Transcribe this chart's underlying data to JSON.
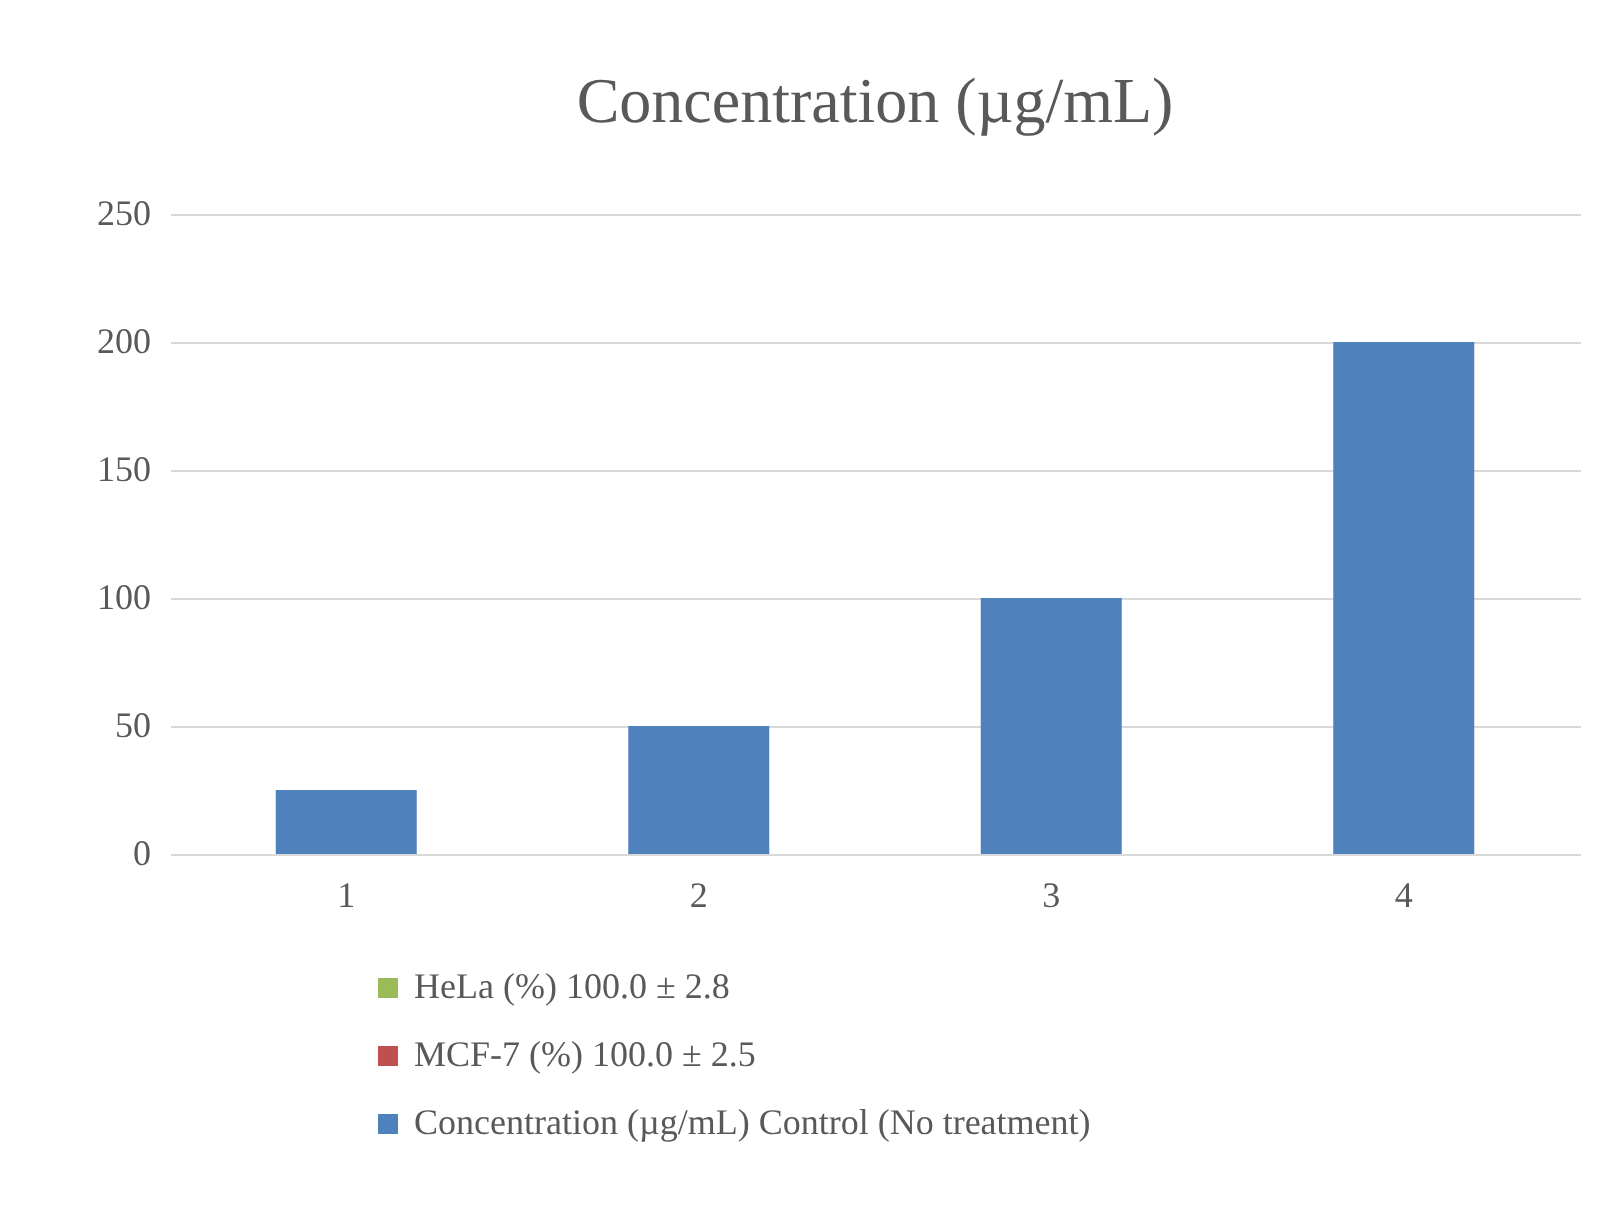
{
  "chart_data": {
    "type": "bar",
    "title": "Concentration (µg/mL)",
    "categories": [
      "1",
      "2",
      "3",
      "4"
    ],
    "series": [
      {
        "name": "HeLa (%) 100.0 ± 2.8",
        "color": "#9bbb59",
        "values": [
          null,
          null,
          null,
          null
        ]
      },
      {
        "name": "MCF-7 (%) 100.0 ± 2.5",
        "color": "#c0504d",
        "values": [
          null,
          null,
          null,
          null
        ]
      },
      {
        "name": "Concentration (µg/mL) Control (No treatment)",
        "color": "#4f81bd",
        "values": [
          25,
          50,
          100,
          200
        ]
      }
    ],
    "ylim": [
      0,
      250
    ],
    "yticks": [
      0,
      50,
      100,
      150,
      200,
      250
    ],
    "grid": "y",
    "legend": "bottom"
  }
}
